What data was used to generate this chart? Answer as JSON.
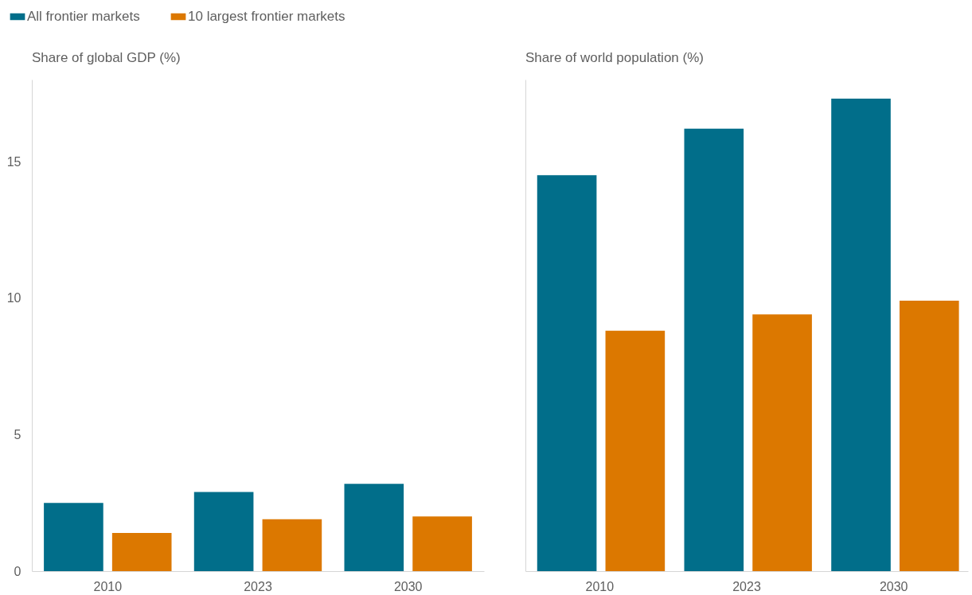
{
  "chart_data": [
    {
      "type": "bar",
      "title": "Share of global GDP (%)",
      "categories": [
        "2010",
        "2023",
        "2030"
      ],
      "series": [
        {
          "name": "All frontier markets",
          "color": "#016e8a",
          "values": [
            2.5,
            2.9,
            3.2
          ]
        },
        {
          "name": "10 largest frontier markets",
          "color": "#dc7800",
          "values": [
            1.4,
            1.9,
            2.0
          ]
        }
      ],
      "ylim": [
        0,
        18
      ],
      "yticks": [
        0,
        5,
        10,
        15
      ],
      "legend": "top"
    },
    {
      "type": "bar",
      "title": "Share of world population (%)",
      "categories": [
        "2010",
        "2023",
        "2030"
      ],
      "series": [
        {
          "name": "All frontier markets",
          "color": "#016e8a",
          "values": [
            14.5,
            16.2,
            17.3
          ]
        },
        {
          "name": "10 largest frontier markets",
          "color": "#dc7800",
          "values": [
            8.8,
            9.4,
            9.9
          ]
        }
      ],
      "ylim": [
        0,
        18
      ],
      "yticks": [
        0,
        5,
        10,
        15
      ],
      "tick_labels": "x"
    }
  ]
}
